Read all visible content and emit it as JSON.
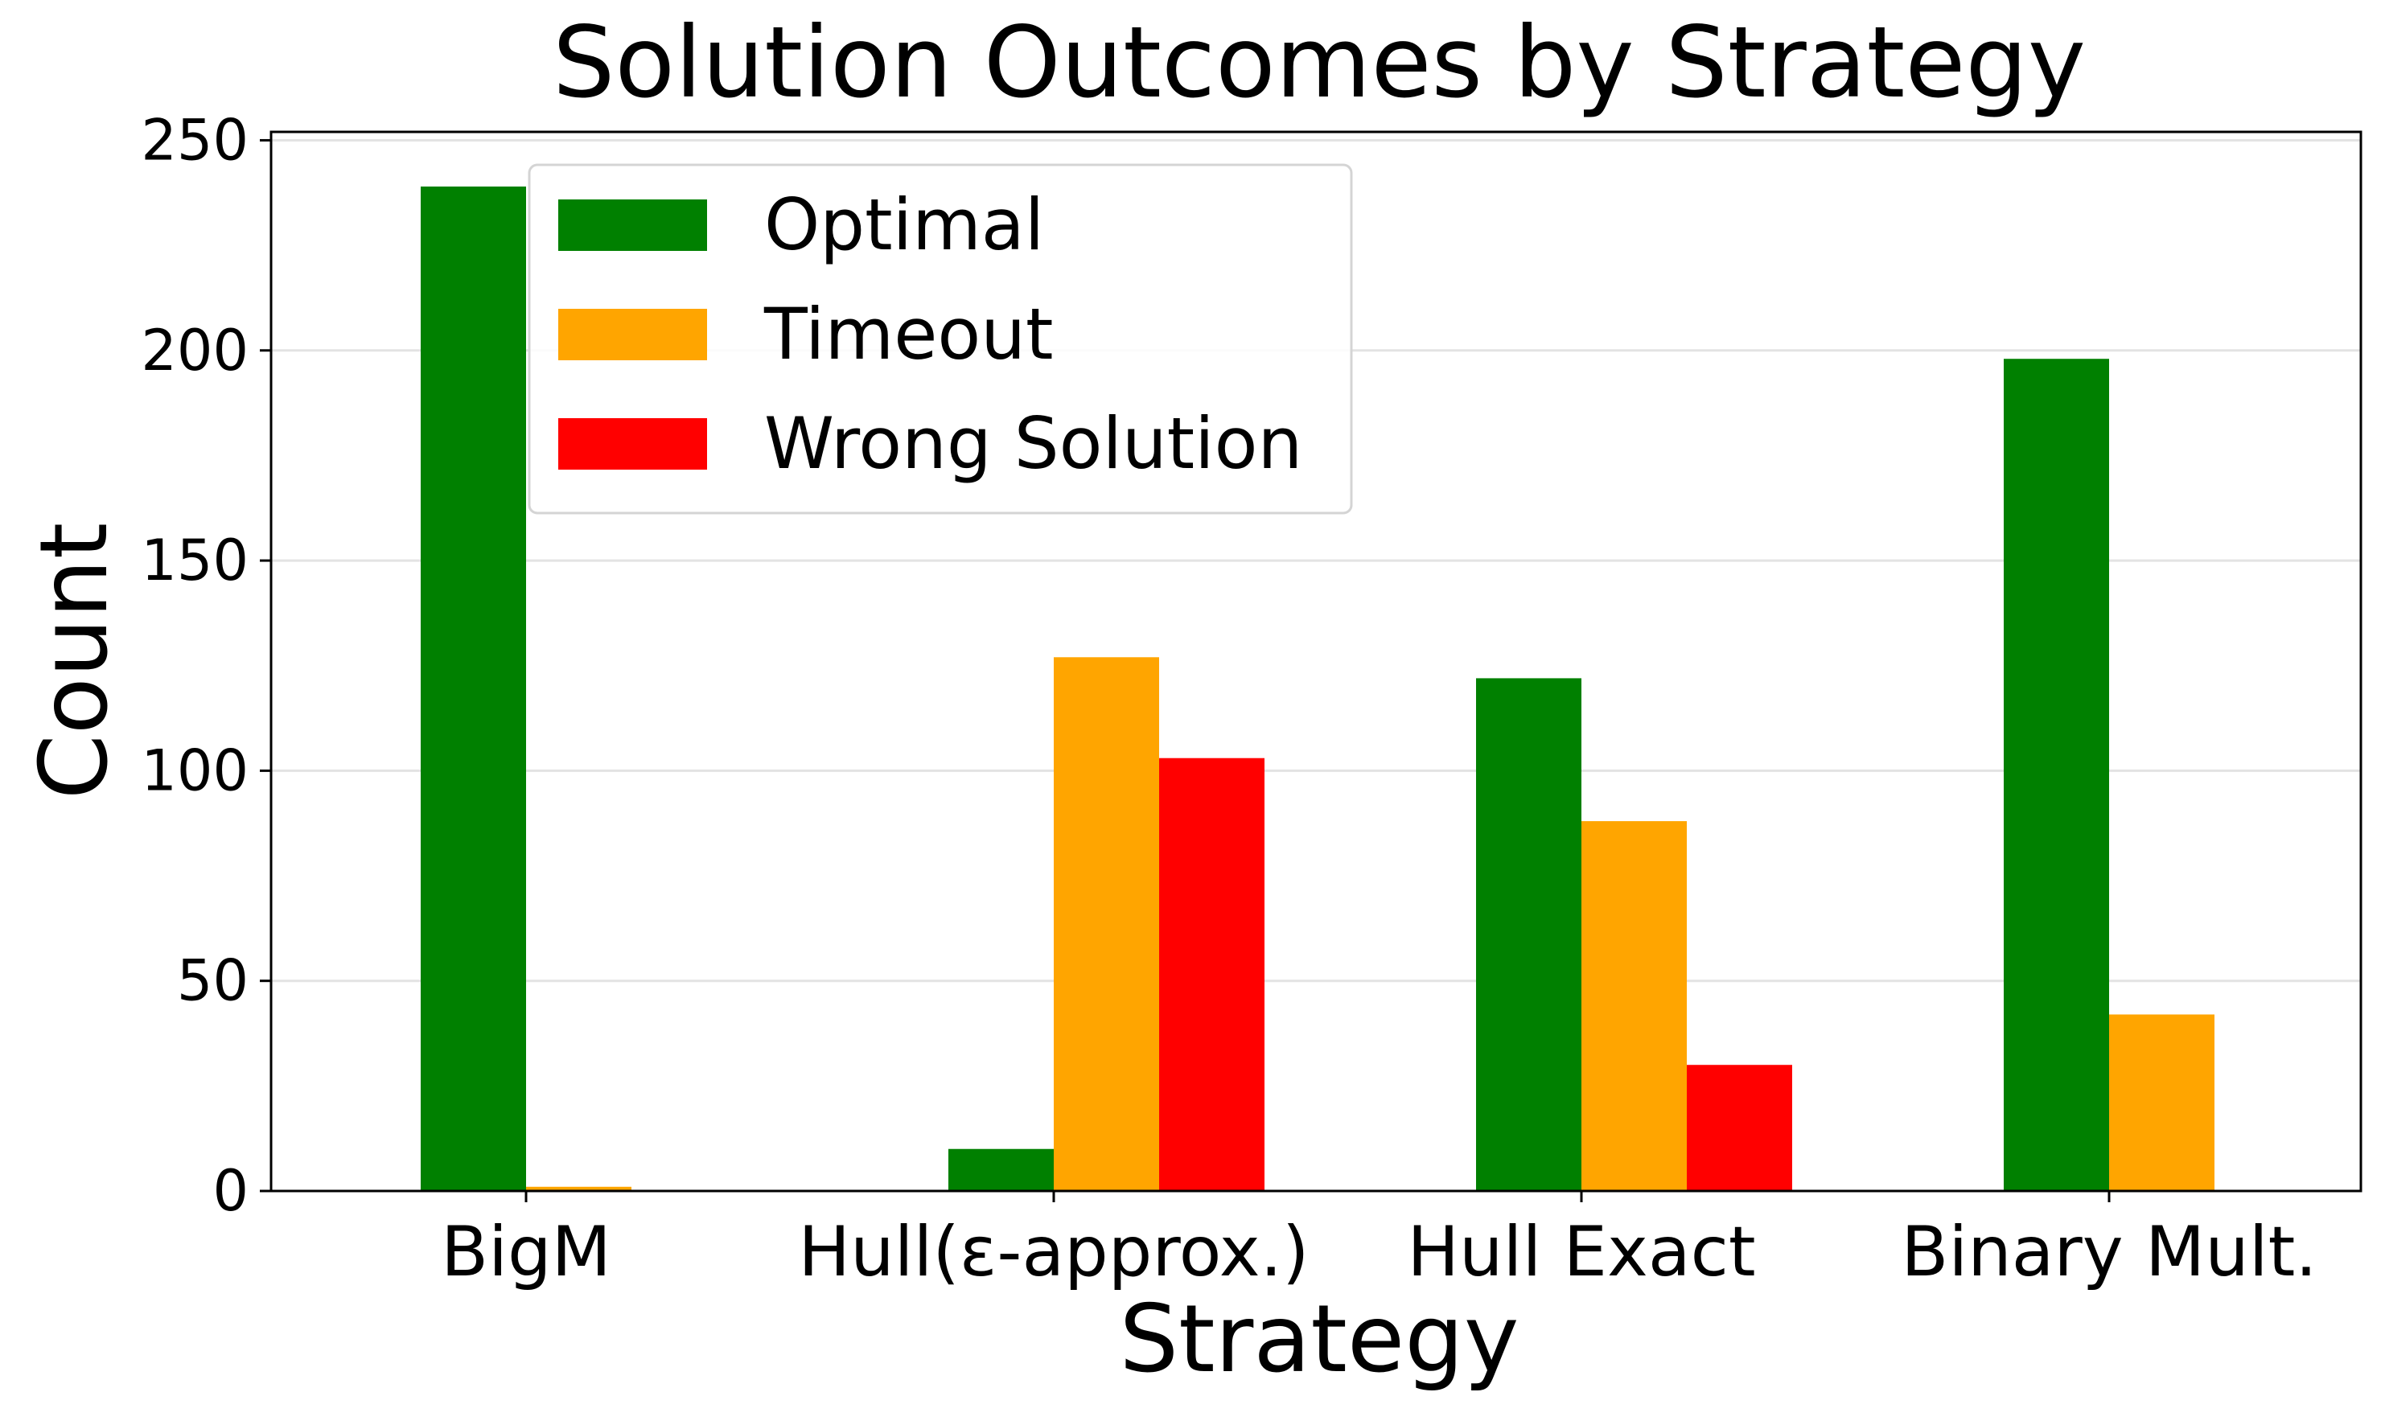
{
  "chart_data": {
    "type": "bar",
    "title": "Solution Outcomes by Strategy",
    "xlabel": "Strategy",
    "ylabel": "Count",
    "categories": [
      "BigM",
      "Hull(ε-approx.)",
      "Hull Exact",
      "Binary Mult."
    ],
    "series": [
      {
        "name": "Optimal",
        "color": "#008000",
        "values": [
          239,
          10,
          122,
          198
        ]
      },
      {
        "name": "Timeout",
        "color": "#FFA500",
        "values": [
          1,
          127,
          88,
          42
        ]
      },
      {
        "name": "Wrong Solution",
        "color": "#FF0000",
        "values": [
          0,
          103,
          30,
          0
        ]
      }
    ],
    "ylim": [
      0,
      252
    ],
    "yticks": [
      0,
      50,
      100,
      150,
      200,
      250
    ],
    "grid": "horizontal",
    "legend_position": "upper-left"
  }
}
